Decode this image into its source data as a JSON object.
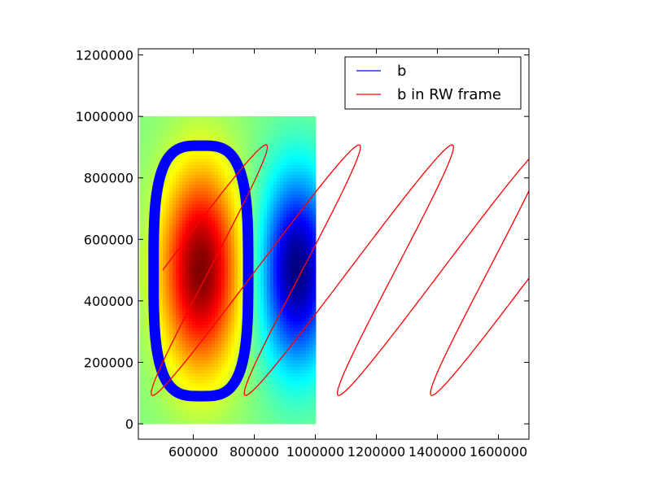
{
  "chart_data": {
    "type": "line",
    "title": "",
    "xlabel": "",
    "ylabel": "",
    "xlim": [
      420000,
      1700000
    ],
    "ylim": [
      -50000,
      1220000
    ],
    "x_ticks": [
      600000,
      800000,
      1000000,
      1200000,
      1400000,
      1600000
    ],
    "x_tick_labels": [
      "600000",
      "800000",
      "1000000",
      "1200000",
      "1400000",
      "1600000"
    ],
    "y_ticks": [
      0,
      200000,
      400000,
      600000,
      800000,
      1000000,
      1200000
    ],
    "y_tick_labels": [
      "0",
      "200000",
      "400000",
      "600000",
      "800000",
      "1000000",
      "1200000"
    ],
    "grid": false,
    "legend_position": "top-right",
    "background_field": {
      "kind": "heatmap",
      "colormap": "jet",
      "x_range": [
        425000,
        1000000
      ],
      "y_range": [
        0,
        1000000
      ],
      "positive_center": [
        625000,
        500000
      ],
      "negative_center": [
        940000,
        500000
      ]
    },
    "series": [
      {
        "name": "b",
        "color": "#0000ff",
        "kind": "closed-loop",
        "x_range": [
          470000,
          780000
        ],
        "y_range": [
          90000,
          905000
        ]
      },
      {
        "name": "b in RW frame",
        "color": "#ff0000",
        "kind": "trochoid",
        "start": [
          500000,
          500000
        ],
        "drift_per_cycle": 305000,
        "loop_minima_x": [
          855000,
          1160000,
          1465000
        ],
        "loop_top_y": 905000,
        "loop_bottom_y": 90000,
        "x_end": 1700000
      }
    ]
  }
}
